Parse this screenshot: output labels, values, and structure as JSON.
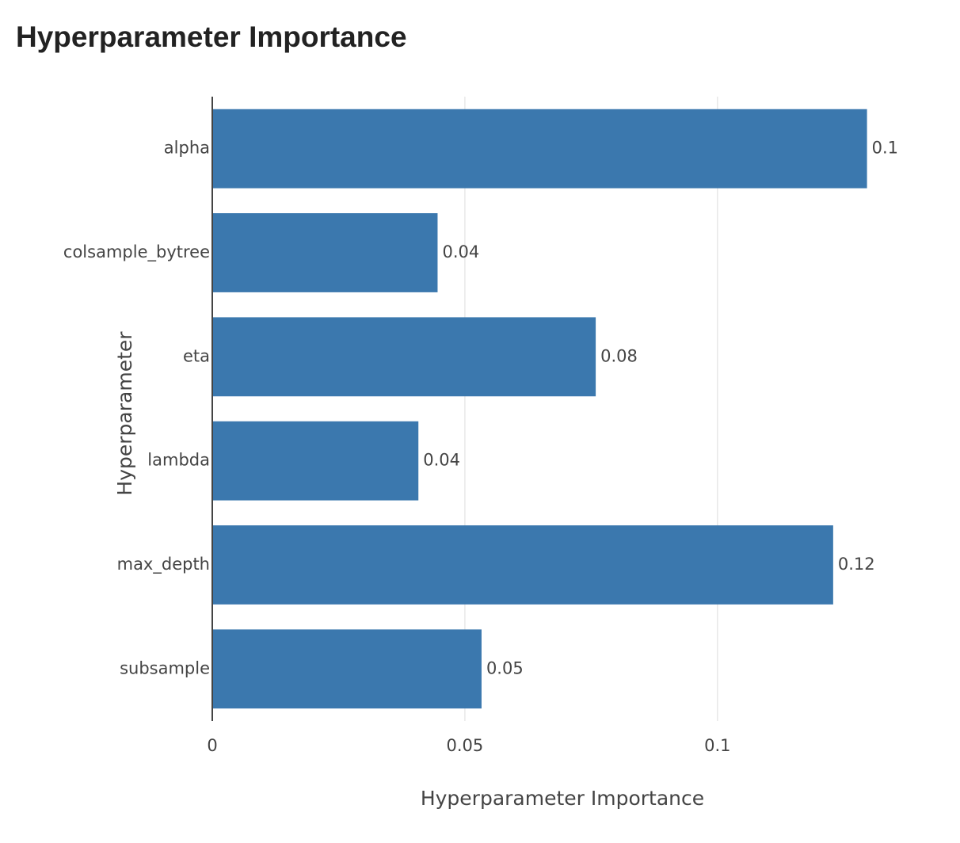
{
  "chart_data": {
    "type": "bar",
    "orientation": "horizontal",
    "title": "Hyperparameter Importance",
    "xlabel": "Hyperparameter Importance",
    "ylabel": "Hyperparameter",
    "categories": [
      "alpha",
      "colsample_bytree",
      "eta",
      "lambda",
      "max_depth",
      "subsample"
    ],
    "values": [
      0.1296,
      0.0446,
      0.0759,
      0.0408,
      0.1229,
      0.0533
    ],
    "data_labels": [
      "0.1",
      "0.04",
      "0.08",
      "0.04",
      "0.12",
      "0.05"
    ],
    "xlim": [
      0,
      0.1386
    ],
    "x_ticks": [
      0,
      0.05,
      0.1
    ],
    "x_tick_labels": [
      "0",
      "0.05",
      "0.1"
    ],
    "grid": true,
    "legend": "none",
    "colors": {
      "bar": "#3b78ae",
      "grid": "#e8e8e8",
      "axis": "#444444",
      "text": "#444444",
      "title": "#222222"
    }
  }
}
